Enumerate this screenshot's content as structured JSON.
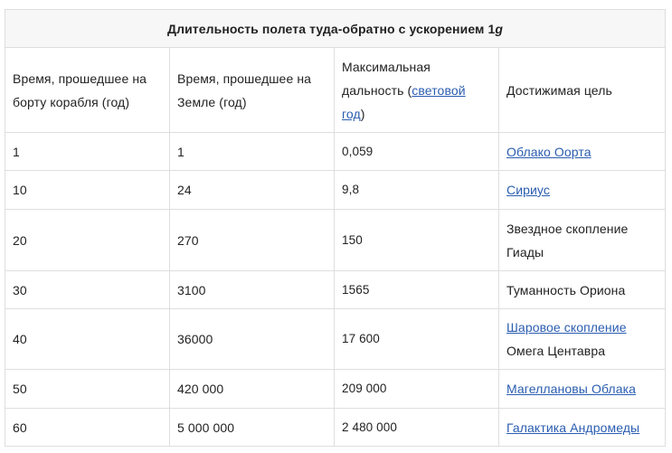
{
  "table": {
    "caption_prefix": "Длительность полета туда-обратно с ускорением 1",
    "caption_unit": "g",
    "headers": {
      "ship_time": "Время, прошедшее на борту корабля (год)",
      "earth_time": "Время, прошедшее на Земле (год)",
      "max_distance_prefix": "Максимальная дальность (",
      "max_distance_link": "световой год",
      "max_distance_suffix": ")",
      "target": "Достижимая цель"
    },
    "rows": [
      {
        "ship": "1",
        "earth": "1",
        "distance": "0,059",
        "target_link": "Облако Оорта",
        "target_text": ""
      },
      {
        "ship": "10",
        "earth": "24",
        "distance": "9,8",
        "target_link": "Сириус",
        "target_text": ""
      },
      {
        "ship": "20",
        "earth": "270",
        "distance": "150",
        "target_link": "",
        "target_text": "Звездное скопление Гиады"
      },
      {
        "ship": "30",
        "earth": "3100",
        "distance": "1565",
        "target_link": "",
        "target_text": "Туманность Ориона"
      },
      {
        "ship": "40",
        "earth": "36000",
        "distance": "17 600",
        "target_link": "Шаровое скопление",
        "target_text": "Омега Центавра"
      },
      {
        "ship": "50",
        "earth": "420 000",
        "distance": "209 000",
        "target_link": "Магеллановы Облака",
        "target_text": ""
      },
      {
        "ship": "60",
        "earth": "5 000 000",
        "distance": "2 480 000",
        "target_link": "Галактика Андромеды",
        "target_text": ""
      }
    ]
  },
  "colors": {
    "link": "#2a5db0",
    "border": "#dedede",
    "caption_bg": "#f7f7f7",
    "text": "#222222"
  }
}
